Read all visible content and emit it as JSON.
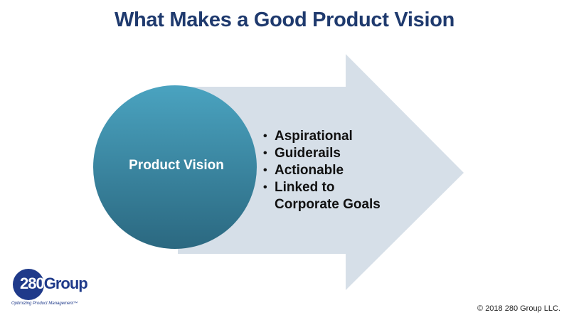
{
  "title": "What Makes a Good Product Vision",
  "circle": {
    "label": "Product Vision"
  },
  "bullets": [
    "Aspirational",
    "Guiderails",
    "Actionable",
    "Linked to Corporate Goals"
  ],
  "logo": {
    "number": "280",
    "word": "Group",
    "tagline": "Optimizing Product Management™"
  },
  "copyright": "© 2018 280 Group LLC.",
  "colors": {
    "title": "#1f3a6e",
    "arrow": "#d6dfe8",
    "circle_top": "#4aa0bd",
    "circle_bottom": "#2c6a82",
    "logo": "#1f3a8a"
  }
}
